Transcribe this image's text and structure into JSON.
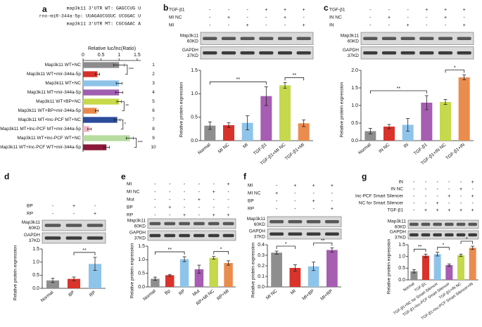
{
  "chart_data": [
    {
      "type": "barh",
      "panel": "a",
      "sequences": [
        "map3k11 3'UTR WT: GAGCCUG U",
        "rno-miR-344a-5p: UUAGAUCGGUC UCGGAC U",
        "map3k11 3'UTR MT: CGCGAAC A"
      ],
      "xlabel": "Relative luc/lnc(Ratio)",
      "categories": [
        "Map3k11 WT+NC",
        "Map3k11 WT+mir-344a-5p",
        "Map3k11 MT+NC",
        "Map3k11 MT+mir-344a-5p",
        "Map3k11 WT+BP+NC",
        "Map3k11 WT+BP+mir-344a-5p",
        "Map3k11 MT+lnc-PCF MT+NC",
        "Map3k11 MT+lnc-PCF MT+mir-344a-5p",
        "Map3k11 WT+lnc-PCF WT+NC",
        "Map3k11 WT+lnc-PCF WT+mir-344a-5p"
      ],
      "row_numbers": [
        "1",
        "2",
        "3",
        "4",
        "5",
        "6",
        "7",
        "8",
        "9",
        "10"
      ],
      "values": [
        1.0,
        0.4,
        1.0,
        1.0,
        1.0,
        0.38,
        0.95,
        0.18,
        1.3,
        0.65
      ],
      "errors": [
        0.15,
        0.06,
        0.08,
        0.1,
        0.06,
        0.04,
        0.08,
        0.05,
        0.1,
        0.08
      ],
      "colors": [
        "#8c8c8c",
        "#d7312a",
        "#8ec3e8",
        "#a05fb0",
        "#c8d94a",
        "#e8894a",
        "#2b4c9c",
        "#f2b6c6",
        "#b6dca0",
        "#8b1a3a"
      ],
      "xlim": [
        0,
        1.6
      ],
      "xticks": [
        0,
        0.5,
        1,
        1.5
      ],
      "significance": [
        {
          "pair": [
            0,
            1
          ],
          "text": "***"
        },
        {
          "pair": [
            4,
            5
          ],
          "text": "**"
        },
        {
          "pair": [
            6,
            7
          ],
          "text": "*"
        },
        {
          "pair": [
            8,
            9
          ],
          "text": "***"
        }
      ]
    },
    {
      "type": "bar",
      "panel": "b",
      "conditions": [
        {
          "name": "TGF-β1",
          "marks": [
            "-",
            "-",
            "-",
            "+",
            "+",
            "+"
          ]
        },
        {
          "name": "MI NC",
          "marks": [
            "-",
            "+",
            "-",
            "-",
            "+",
            "-"
          ]
        },
        {
          "name": "MI",
          "marks": [
            "-",
            "-",
            "+",
            "-",
            "-",
            "+"
          ]
        }
      ],
      "blot_labels": [
        "Map3k11",
        "60KD",
        "GAPDH",
        "37KD"
      ],
      "ylabel": "Relative protein expression",
      "categories": [
        "Normal",
        "MI NC",
        "MI",
        "TGF-β1",
        "TGF-β1+MI NC",
        "TGF-β1+MI"
      ],
      "values": [
        0.32,
        0.33,
        0.38,
        0.95,
        1.18,
        0.37
      ],
      "errors": [
        0.08,
        0.05,
        0.15,
        0.2,
        0.06,
        0.07
      ],
      "colors": [
        "#8e8e8e",
        "#d9332c",
        "#8fc4ea",
        "#a65db2",
        "#c6d84c",
        "#ea8c4e"
      ],
      "ylim": [
        0,
        1.5
      ],
      "yticks": [
        {
          "value": 0,
          "label": "0.0"
        },
        0.5,
        {
          "value": 1,
          "label": "1.0"
        },
        1.5
      ],
      "significance": [
        {
          "pair": [
            0,
            3
          ],
          "text": "**"
        },
        {
          "pair": [
            4,
            5
          ],
          "text": "**"
        }
      ]
    },
    {
      "type": "bar",
      "panel": "c",
      "conditions": [
        {
          "name": "TGF-β1",
          "marks": [
            "-",
            "-",
            "-",
            "+",
            "+",
            "+"
          ]
        },
        {
          "name": "IN NC",
          "marks": [
            "-",
            "+",
            "-",
            "-",
            "+",
            "-"
          ]
        },
        {
          "name": "IN",
          "marks": [
            "-",
            "-",
            "+",
            "-",
            "-",
            "+"
          ]
        }
      ],
      "blot_labels": [
        "Map3k11",
        "60KD",
        "GAPDH",
        "37KD"
      ],
      "ylabel": "Relative protein expression",
      "categories": [
        "Normal",
        "IN NC",
        "IN",
        "TGF-β1",
        "TGF-β1+IN NC",
        "TGF-β1+IN"
      ],
      "values": [
        0.27,
        0.4,
        0.45,
        1.08,
        1.1,
        1.8
      ],
      "errors": [
        0.08,
        0.06,
        0.18,
        0.2,
        0.07,
        0.07
      ],
      "colors": [
        "#8e8e8e",
        "#d9332c",
        "#8fc4ea",
        "#a65db2",
        "#c6d84c",
        "#ea8c4e"
      ],
      "ylim": [
        0,
        2
      ],
      "yticks": [
        {
          "value": 0,
          "label": "0.0"
        },
        0.5,
        {
          "value": 1,
          "label": "1.0"
        },
        1.5,
        {
          "value": 2,
          "label": "2.0"
        }
      ],
      "significance": [
        {
          "pair": [
            0,
            3
          ],
          "text": "**"
        },
        {
          "pair": [
            4,
            5
          ],
          "text": "*"
        }
      ]
    },
    {
      "type": "bar",
      "panel": "d",
      "conditions": [
        {
          "name": "BP",
          "marks": [
            "-",
            "+",
            "-"
          ]
        },
        {
          "name": "RP",
          "marks": [
            "-",
            "-",
            "+"
          ]
        }
      ],
      "blot_labels": [
        "Map3k11",
        "60KD",
        "GAPDH",
        "37KD"
      ],
      "ylabel": "Relative protein expression",
      "categories": [
        "Normal",
        "BP",
        "RP"
      ],
      "values": [
        0.3,
        0.36,
        0.93
      ],
      "errors": [
        0.08,
        0.07,
        0.25
      ],
      "colors": [
        "#8e8e8e",
        "#d9332c",
        "#8fc4ea"
      ],
      "ylim": [
        0,
        1.5
      ],
      "yticks": [
        {
          "value": 0,
          "label": "0.0"
        },
        0.5,
        {
          "value": 1,
          "label": "1.0"
        },
        1.5
      ],
      "significance": [
        {
          "pair": [
            1,
            2
          ],
          "text": "**"
        }
      ]
    },
    {
      "type": "bar",
      "panel": "e",
      "conditions": [
        {
          "name": "MI",
          "marks": [
            "-",
            "-",
            "-",
            "-",
            "-",
            "+"
          ]
        },
        {
          "name": "MI NC",
          "marks": [
            "-",
            "-",
            "-",
            "-",
            "+",
            "-"
          ]
        },
        {
          "name": "Mut",
          "marks": [
            "-",
            "-",
            "-",
            "+",
            "-",
            "-"
          ]
        },
        {
          "name": "BP",
          "marks": [
            "-",
            "+",
            "-",
            "-",
            "-",
            "-"
          ]
        },
        {
          "name": "RP",
          "marks": [
            "-",
            "-",
            "+",
            "-",
            "+",
            "+"
          ]
        }
      ],
      "blot_labels": [
        "Map3k11",
        "60KD",
        "GAPDH",
        "37KD"
      ],
      "ylabel": "Relative protein expression",
      "categories": [
        "Normal",
        "Bp",
        "RP",
        "Mut",
        "RP+MI NC",
        "RP+MI"
      ],
      "values": [
        0.3,
        0.43,
        1.02,
        0.65,
        1.07,
        0.88
      ],
      "errors": [
        0.06,
        0.03,
        0.09,
        0.15,
        0.05,
        0.08
      ],
      "colors": [
        "#8e8e8e",
        "#d9332c",
        "#8fc4ea",
        "#a65db2",
        "#c6d84c",
        "#ea8c4e"
      ],
      "ylim": [
        0,
        1.5
      ],
      "yticks": [
        {
          "value": 0,
          "label": "0.0"
        },
        0.5,
        {
          "value": 1,
          "label": "1.0"
        },
        1.5
      ],
      "significance": [
        {
          "pair": [
            0,
            2
          ],
          "text": "**"
        },
        {
          "pair": [
            4,
            5
          ],
          "text": "*"
        }
      ]
    },
    {
      "type": "bar",
      "panel": "f",
      "conditions": [
        {
          "name": "MI",
          "marks": [
            "-",
            "+",
            "+",
            "+"
          ]
        },
        {
          "name": "MI NC",
          "marks": [
            "+",
            "-",
            "-",
            "-"
          ]
        },
        {
          "name": "BP",
          "marks": [
            "-",
            "-",
            "+",
            "-"
          ]
        },
        {
          "name": "RP",
          "marks": [
            "-",
            "-",
            "-",
            "+"
          ]
        }
      ],
      "blot_labels": [
        "Map3k11",
        "60KD",
        "GAPDH",
        "37KD"
      ],
      "ylabel": "Relative protein expression",
      "categories": [
        "MI NC",
        "MI",
        "MI+BP",
        "MI+RP"
      ],
      "values": [
        0.325,
        0.18,
        0.195,
        0.35
      ],
      "errors": [
        0.015,
        0.03,
        0.04,
        0.02
      ],
      "colors": [
        "#8e8e8e",
        "#d9332c",
        "#8fc4ea",
        "#a65db2"
      ],
      "ylim": [
        0,
        0.4
      ],
      "yticks": [
        {
          "value": 0,
          "label": "0.0"
        },
        0.1,
        0.2,
        0.3,
        0.4
      ],
      "significance": [
        {
          "pair": [
            0,
            1
          ],
          "text": "*"
        },
        {
          "pair": [
            2,
            3
          ],
          "text": "**"
        }
      ]
    },
    {
      "type": "bar",
      "panel": "g",
      "conditions": [
        {
          "name": "IN",
          "marks": [
            "-",
            "-",
            "-",
            "-",
            "-",
            "+"
          ]
        },
        {
          "name": "IN NC",
          "marks": [
            "-",
            "-",
            "-",
            "-",
            "+",
            "-"
          ]
        },
        {
          "name": "lnc-PCF Smart Silencer",
          "marks": [
            "-",
            "-",
            "-",
            "+",
            "-",
            "+"
          ]
        },
        {
          "name": "NC for Smart Silencer",
          "marks": [
            "-",
            "-",
            "+",
            "-",
            "-",
            "-"
          ]
        },
        {
          "name": "TGF-β1",
          "marks": [
            "-",
            "+",
            "+",
            "+",
            "+",
            "+"
          ]
        }
      ],
      "blot_labels": [
        "Map3k11",
        "60KD",
        "GAPDH",
        "37KD"
      ],
      "ylabel": "Relative protein expression",
      "categories": [
        "Normal",
        "TGF-β1",
        "TGF-β1+NC for Smart Silencer",
        "TGF-β1+lnc-PCF Smart Silencer",
        "TGF-β1+IN NC",
        "TGF-β1+lnc-PCF Smart Silencer+IN"
      ],
      "values": [
        0.37,
        1.03,
        1.1,
        0.63,
        1.05,
        1.37
      ],
      "errors": [
        0.07,
        0.07,
        0.08,
        0.05,
        0.05,
        0.07
      ],
      "colors": [
        "#8e8e8e",
        "#d9332c",
        "#8fc4ea",
        "#a65db2",
        "#c6d84c",
        "#ea8c4e"
      ],
      "ylim": [
        0,
        1.5
      ],
      "yticks": [
        {
          "value": 0,
          "label": "0.0"
        },
        0.5,
        {
          "value": 1,
          "label": "1.0"
        },
        1.5
      ],
      "significance": [
        {
          "pair": [
            0,
            1
          ],
          "text": "**"
        },
        {
          "pair": [
            2,
            3
          ],
          "text": "*"
        },
        {
          "pair": [
            4,
            5
          ],
          "text": "*"
        }
      ]
    }
  ]
}
